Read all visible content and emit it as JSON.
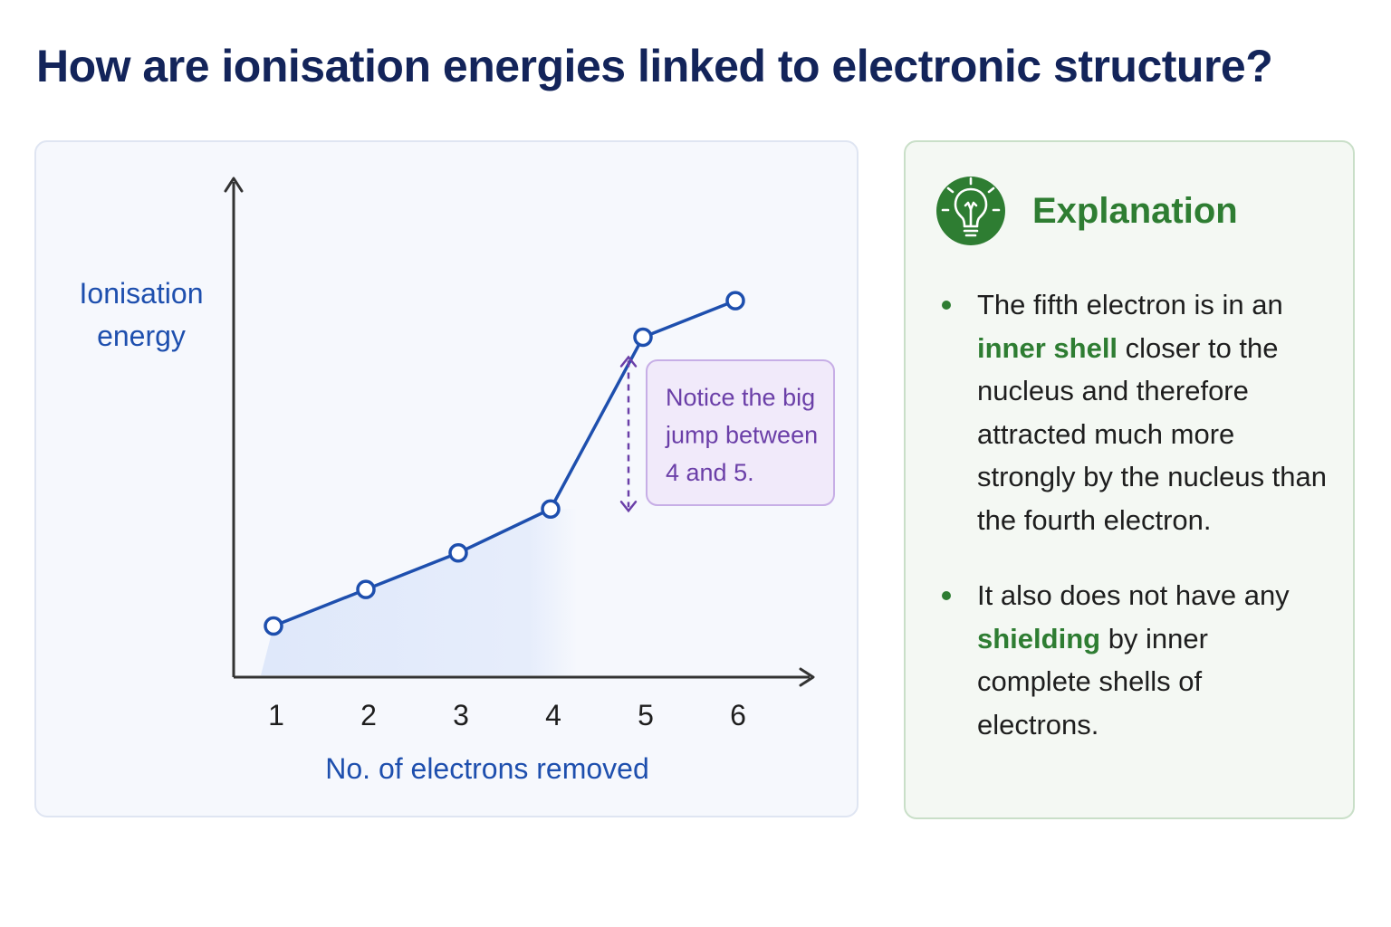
{
  "page": {
    "title": "How are ionisation energies linked to electronic structure?"
  },
  "chart_data": {
    "type": "line",
    "title": "",
    "xlabel": "No. of electrons removed",
    "ylabel": "Ionisation energy",
    "ylabel_lines": [
      "Ionisation",
      "energy"
    ],
    "categories": [
      "1",
      "2",
      "3",
      "4",
      "5",
      "6"
    ],
    "series": [
      {
        "values": [
          1.4,
          2.4,
          3.4,
          4.6,
          9.3,
          10.3
        ]
      }
    ],
    "ylim": [
      0,
      12
    ],
    "y_ticks_shown": false,
    "grid": false,
    "legend": "none",
    "annotation": {
      "text_lines": [
        "Notice the big",
        "jump between",
        "4 and 5."
      ],
      "between_categories": [
        "4",
        "5"
      ]
    },
    "colors": {
      "line": "#1e4fae",
      "fill": "#dce6fa",
      "annotation": "#6b3fa8",
      "annotation_bg": "#f1eafa",
      "axis": "#333333"
    }
  },
  "explanation": {
    "icon": "lightbulb-icon",
    "title": "Explanation",
    "bullets": [
      {
        "parts": [
          {
            "text": "The fifth electron is in an ",
            "highlight": false
          },
          {
            "text": "inner shell",
            "highlight": true
          },
          {
            "text": " closer to the nucleus and therefore attracted much more strongly by the nucleus than the fourth electron.",
            "highlight": false
          }
        ]
      },
      {
        "parts": [
          {
            "text": "It also does not have any ",
            "highlight": false
          },
          {
            "text": "shielding",
            "highlight": true
          },
          {
            "text": " by inner complete shells of electrons.",
            "highlight": false
          }
        ]
      }
    ],
    "colors": {
      "accent": "#2e7d32",
      "text": "#1e1e1e"
    }
  }
}
